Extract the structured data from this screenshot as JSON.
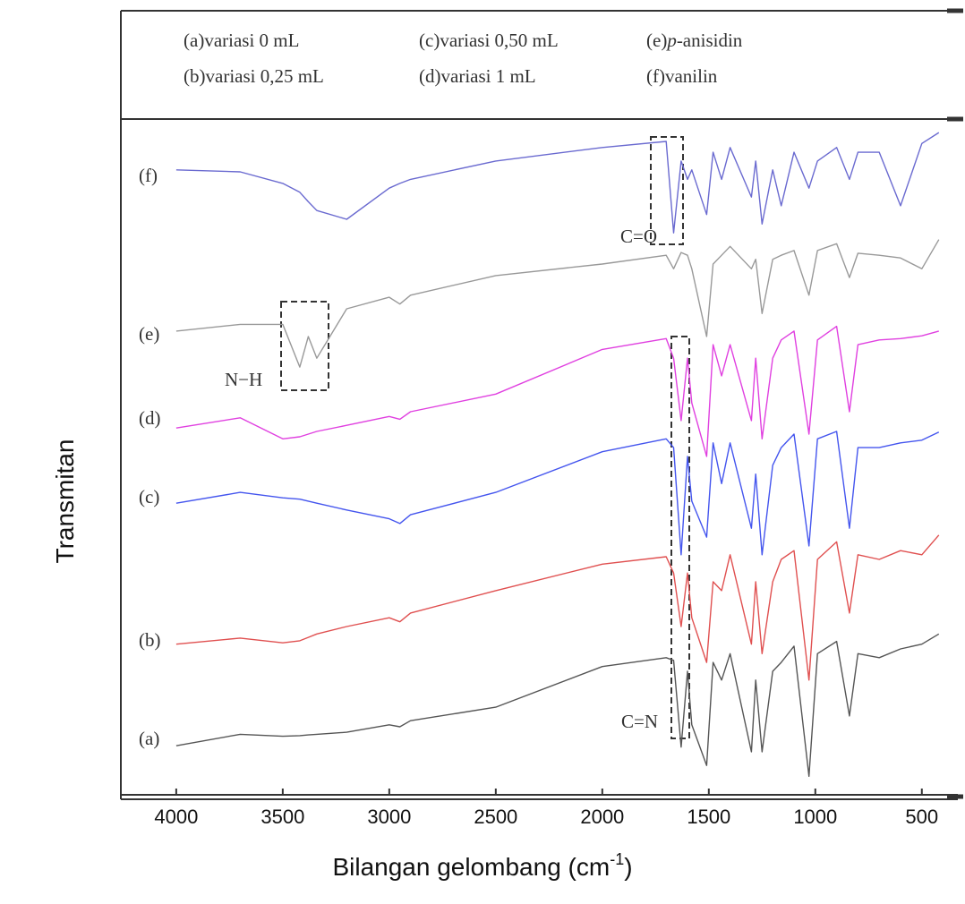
{
  "chart_data": {
    "type": "line",
    "x_label": "Bilangan gelombang (cm",
    "x_label_sup": "-1",
    "x_label_end": ")",
    "y_label": "Transmitan",
    "legend": [
      {
        "key": "(a)",
        "text": "variasi 0 mL"
      },
      {
        "key": "(b)",
        "text": "variasi 0,25 mL"
      },
      {
        "key": "(c)",
        "text": "variasi 0,50 mL"
      },
      {
        "key": "(d)",
        "text": "variasi 1 mL"
      },
      {
        "key": "(e)",
        "italic": "p",
        "text": "-anisidin"
      },
      {
        "key": "(f)",
        "text": "vanilin"
      }
    ],
    "annotations": [
      "C=O",
      "N−H",
      "C=N"
    ],
    "xlim": [
      4260,
      310
    ],
    "xticks": [
      4000,
      3500,
      3000,
      2500,
      2000,
      1500,
      1000,
      500
    ],
    "ylim": [
      0,
      100
    ],
    "x": [
      4000,
      3700,
      3500,
      3420,
      3380,
      3340,
      3200,
      3000,
      2950,
      2900,
      2500,
      2000,
      1700,
      1665,
      1630,
      1600,
      1580,
      1510,
      1480,
      1440,
      1400,
      1300,
      1280,
      1250,
      1200,
      1160,
      1100,
      1030,
      990,
      900,
      840,
      800,
      700,
      600,
      500,
      420
    ],
    "series": [
      {
        "name": "(a)",
        "color": "#555555",
        "values": [
          7.5,
          9.2,
          8.9,
          9.0,
          9.1,
          9.2,
          9.5,
          10.6,
          10.3,
          11.2,
          13.2,
          19.2,
          20.5,
          20.1,
          7.3,
          18.5,
          10.6,
          4.6,
          19.8,
          17.2,
          21.1,
          6.6,
          17.2,
          6.6,
          18.5,
          19.8,
          22.2,
          3.0,
          21.1,
          22.9,
          11.9,
          21.1,
          20.5,
          21.8,
          22.5,
          24.0
        ]
      },
      {
        "name": "(b)",
        "color": "#e05050",
        "values": [
          22.5,
          23.4,
          22.7,
          23.0,
          23.5,
          24.0,
          25.1,
          26.4,
          25.8,
          27.1,
          30.4,
          34.3,
          35.4,
          33.0,
          25.1,
          33.0,
          26.4,
          19.8,
          31.7,
          30.4,
          35.7,
          22.5,
          31.7,
          21.1,
          31.7,
          35.0,
          36.3,
          17.2,
          35.0,
          37.6,
          27.1,
          35.7,
          35.0,
          36.3,
          35.7,
          38.6
        ]
      },
      {
        "name": "(c)",
        "color": "#4455ee",
        "values": [
          43.3,
          44.9,
          44.1,
          43.9,
          43.6,
          43.3,
          42.3,
          41.0,
          40.3,
          41.6,
          44.9,
          50.9,
          52.8,
          51.5,
          35.7,
          50.2,
          43.6,
          38.3,
          52.2,
          46.2,
          52.2,
          39.6,
          47.6,
          35.7,
          48.9,
          51.5,
          53.5,
          37.0,
          52.8,
          53.9,
          39.6,
          51.5,
          51.5,
          52.2,
          52.6,
          53.8
        ]
      },
      {
        "name": "(d)",
        "color": "#e040e0",
        "values": [
          54.4,
          55.9,
          52.8,
          53.1,
          53.5,
          53.9,
          54.8,
          56.1,
          55.7,
          56.8,
          59.4,
          66.0,
          67.6,
          64.7,
          55.5,
          64.7,
          58.1,
          50.2,
          66.7,
          62.1,
          66.7,
          55.5,
          64.7,
          52.8,
          64.7,
          67.4,
          68.7,
          53.5,
          67.4,
          69.4,
          56.8,
          66.7,
          67.4,
          67.6,
          68.0,
          68.7
        ]
      },
      {
        "name": "(e)",
        "color": "#999999",
        "values": [
          68.7,
          69.7,
          69.7,
          63.4,
          67.9,
          64.7,
          72.0,
          73.7,
          72.7,
          74.0,
          76.9,
          78.6,
          79.9,
          77.9,
          80.3,
          79.9,
          77.9,
          67.9,
          78.6,
          79.9,
          81.2,
          77.9,
          79.3,
          71.3,
          79.3,
          79.9,
          80.6,
          74.0,
          80.6,
          81.6,
          76.6,
          80.2,
          79.9,
          79.5,
          77.9,
          82.2
        ]
      },
      {
        "name": "(f)",
        "color": "#6a6ad0",
        "values": [
          92.5,
          92.2,
          90.5,
          89.2,
          87.8,
          86.5,
          85.2,
          89.8,
          90.5,
          91.1,
          93.8,
          95.8,
          96.7,
          83.2,
          93.8,
          91.1,
          92.5,
          85.9,
          95.1,
          91.1,
          95.8,
          88.5,
          93.8,
          84.5,
          92.5,
          87.2,
          95.1,
          89.8,
          93.8,
          95.8,
          91.1,
          95.1,
          95.1,
          87.2,
          96.4,
          98.0
        ]
      }
    ]
  }
}
